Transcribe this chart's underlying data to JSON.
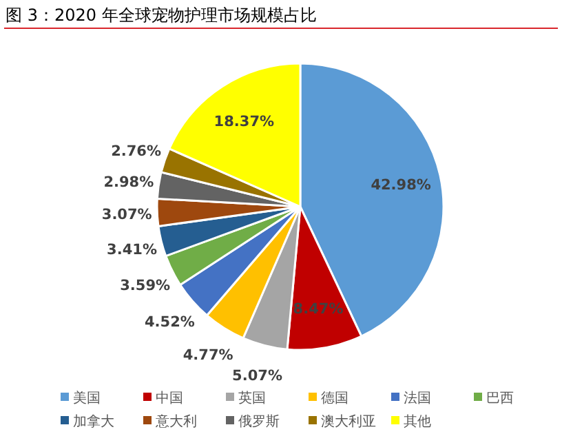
{
  "chart_data": {
    "type": "pie",
    "title": "图 3：2020 年全球宠物护理市场规模占比",
    "categories": [
      "美国",
      "中国",
      "英国",
      "德国",
      "法国",
      "巴西",
      "加拿大",
      "意大利",
      "俄罗斯",
      "澳大利亚",
      "其他"
    ],
    "values": [
      42.98,
      8.47,
      5.07,
      4.77,
      4.52,
      3.59,
      3.41,
      3.07,
      2.98,
      2.76,
      18.37
    ],
    "value_labels": [
      "42.98%",
      "8.47%",
      "5.07%",
      "4.77%",
      "4.52%",
      "3.59%",
      "3.41%",
      "3.07%",
      "2.98%",
      "2.76%",
      "18.37%"
    ],
    "colors": [
      "#5b9bd5",
      "#c00000",
      "#a5a5a5",
      "#ffc000",
      "#4472c4",
      "#70ad47",
      "#255e91",
      "#9e480e",
      "#636363",
      "#997300",
      "#ffff00"
    ],
    "legend": "bottom"
  }
}
